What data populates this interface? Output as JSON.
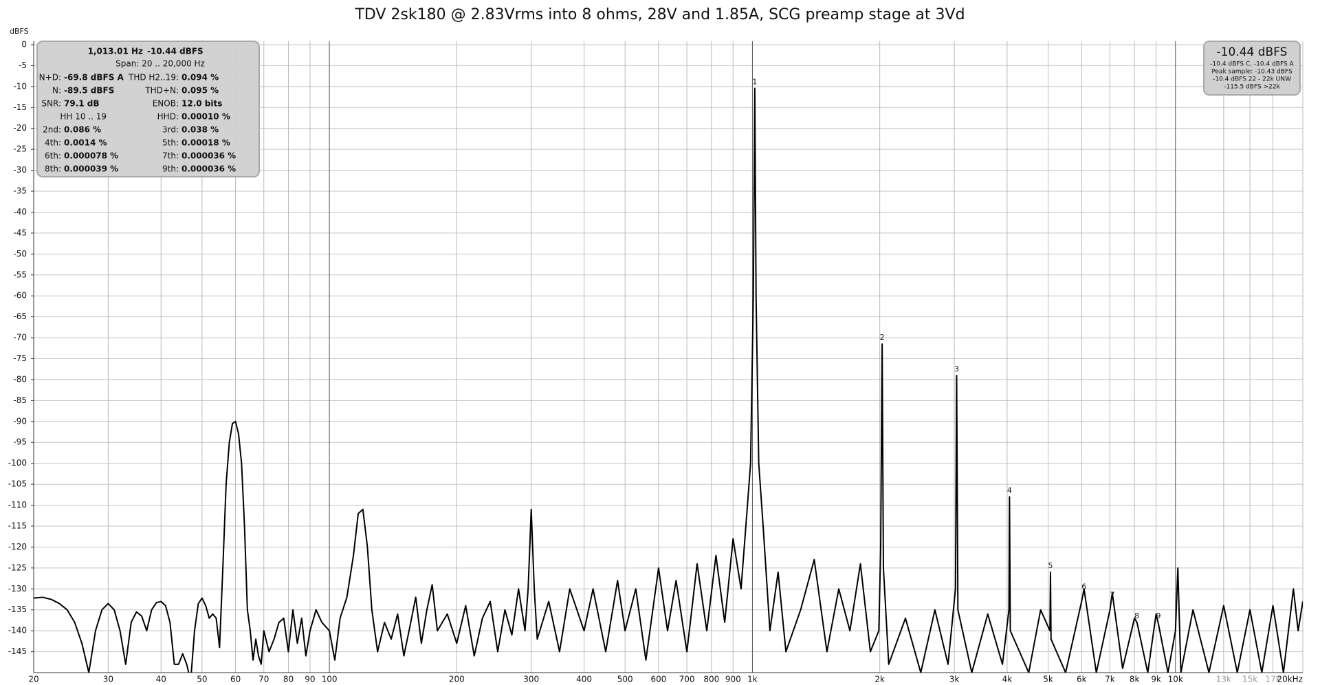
{
  "chart_data": {
    "type": "line",
    "title": "TDV 2sk180 @ 2.83Vrms into 8 ohms, 28V and 1.85A, SCG preamp stage at 3Vd",
    "y_label": "dBFS",
    "x_scale": "log",
    "grid": true,
    "xlim": [
      20,
      20000
    ],
    "ylim": [
      -150,
      0
    ],
    "yticks": [
      0,
      -5,
      -10,
      -15,
      -20,
      -25,
      -30,
      -35,
      -40,
      -45,
      -50,
      -55,
      -60,
      -65,
      -70,
      -75,
      -80,
      -85,
      -90,
      -95,
      -100,
      -105,
      -110,
      -115,
      -120,
      -125,
      -130,
      -135,
      -140,
      -145
    ],
    "xticks": [
      20,
      30,
      40,
      50,
      60,
      70,
      80,
      90,
      100,
      200,
      300,
      400,
      500,
      600,
      700,
      800,
      900,
      {
        "value": 1000,
        "label": "1k"
      },
      {
        "value": 2000,
        "label": "2k"
      },
      {
        "value": 3000,
        "label": "3k"
      },
      {
        "value": 4000,
        "label": "4k"
      },
      {
        "value": 5000,
        "label": "5k"
      },
      {
        "value": 6000,
        "label": "6k"
      },
      {
        "value": 7000,
        "label": "7k"
      },
      {
        "value": 8000,
        "label": "8k"
      },
      {
        "value": 9000,
        "label": "9k"
      },
      {
        "value": 10000,
        "label": "10k"
      },
      {
        "value": 13000,
        "label": "13k"
      },
      {
        "value": 15000,
        "label": "15k"
      },
      {
        "value": 17000,
        "label": "17k"
      },
      {
        "value": 20000,
        "label": "20kHz"
      }
    ],
    "x": [
      20,
      21,
      22,
      23,
      24,
      25,
      26,
      27,
      28,
      29,
      30,
      31,
      32,
      33,
      34,
      35,
      36,
      37,
      38,
      39,
      40,
      41,
      42,
      43,
      44,
      45,
      46,
      47,
      48,
      49,
      50,
      51,
      52,
      53,
      54,
      55,
      56,
      57,
      58,
      59,
      60,
      61,
      62,
      63,
      64,
      65,
      66,
      67,
      68,
      69,
      70,
      72,
      74,
      76,
      78,
      80,
      82,
      84,
      86,
      88,
      90,
      93,
      96,
      100,
      103,
      106,
      110,
      114,
      117,
      120,
      123,
      126,
      130,
      135,
      140,
      145,
      150,
      155,
      160,
      165,
      170,
      175,
      180,
      190,
      200,
      210,
      220,
      230,
      240,
      250,
      260,
      270,
      280,
      290,
      295,
      300,
      305,
      310,
      330,
      350,
      370,
      400,
      420,
      450,
      480,
      500,
      530,
      560,
      600,
      630,
      660,
      700,
      740,
      780,
      820,
      860,
      900,
      940,
      970,
      990,
      1005,
      1013,
      1020,
      1035,
      1060,
      1100,
      1150,
      1200,
      1300,
      1400,
      1500,
      1600,
      1700,
      1800,
      1900,
      1990,
      2010,
      2026,
      2040,
      2100,
      2300,
      2500,
      2700,
      2900,
      3020,
      3039,
      3060,
      3300,
      3600,
      3900,
      4040,
      4052,
      4070,
      4500,
      4800,
      5050,
      5065,
      5080,
      5500,
      6000,
      6080,
      6500,
      7000,
      7090,
      7500,
      8000,
      8110,
      8600,
      9000,
      9120,
      9600,
      10000,
      10130,
      10300,
      11000,
      12000,
      13000,
      14000,
      15000,
      16000,
      17000,
      18000,
      19000,
      19500,
      20000
    ],
    "series": [
      {
        "name": "Spectrum",
        "color": "#000000",
        "values": [
          -132.2,
          -132,
          -132.5,
          -133.5,
          -135,
          -138,
          -143,
          -150,
          -140,
          -135,
          -133.5,
          -135,
          -140,
          -148,
          -138,
          -135.5,
          -136.5,
          -140,
          -135,
          -133.3,
          -133,
          -134,
          -138,
          -148,
          -148,
          -145.5,
          -148,
          -152,
          -140,
          -133.5,
          -132.2,
          -134,
          -137,
          -136,
          -137,
          -144,
          -125,
          -105,
          -95,
          -90.5,
          -90,
          -93,
          -100,
          -115,
          -135,
          -140,
          -147,
          -142,
          -146,
          -148,
          -140,
          -145,
          -142,
          -138,
          -137,
          -145,
          -135,
          -143,
          -137,
          -146,
          -140,
          -135,
          -138,
          -140,
          -147,
          -137,
          -132,
          -122,
          -112,
          -111,
          -120,
          -135,
          -145,
          -138,
          -142,
          -136,
          -146,
          -139,
          -132,
          -143,
          -135,
          -129,
          -140,
          -136,
          -143,
          -134,
          -146,
          -137,
          -133,
          -145,
          -135,
          -141,
          -130,
          -140,
          -130,
          -111,
          -130,
          -142,
          -133,
          -145,
          -130,
          -140,
          -130,
          -145,
          -128,
          -140,
          -130,
          -147,
          -125,
          -140,
          -128,
          -145,
          -124,
          -140,
          -122,
          -138,
          -118,
          -130,
          -112,
          -100,
          -60,
          -10.44,
          -60,
          -100,
          -115,
          -140,
          -126,
          -145,
          -135,
          -123,
          -145,
          -130,
          -140,
          -124,
          -145,
          -140,
          -120,
          -71.5,
          -125,
          -148,
          -137,
          -150,
          -135,
          -148,
          -130,
          -79,
          -135,
          -150,
          -136,
          -148,
          -135,
          -108,
          -140,
          -150,
          -135,
          -140,
          -126,
          -142,
          -150,
          -133,
          -130,
          -150,
          -135,
          -131,
          -149,
          -137,
          -138,
          -150,
          -136,
          -138.5,
          -150,
          -140,
          -125,
          -150,
          -135,
          -150,
          -134,
          -150,
          -135,
          -150,
          -134,
          -150,
          -130,
          -140,
          -133
        ]
      }
    ],
    "harmonics": [
      {
        "label": "1",
        "x": 1013,
        "value": -10.44
      },
      {
        "label": "2",
        "x": 2026,
        "value": -71.5
      },
      {
        "label": "3",
        "x": 3039,
        "value": -79
      },
      {
        "label": "4",
        "x": 4052,
        "value": -108
      },
      {
        "label": "5",
        "x": 5065,
        "value": -126
      },
      {
        "label": "6",
        "x": 6078,
        "value": -131
      },
      {
        "label": "7",
        "x": 7091,
        "value": -133
      },
      {
        "label": "8",
        "x": 8104,
        "value": -138
      },
      {
        "label": "9",
        "x": 9117,
        "value": -138
      }
    ],
    "info_box": {
      "header": [
        "1,013.01 Hz",
        "-10.44 dBFS"
      ],
      "span": "Span: 20 .. 20,000 Hz",
      "rows": [
        {
          "left": [
            "N+D:",
            "-69.8 dBFS A"
          ],
          "right": [
            "THD H2..19:",
            "0.094 %"
          ]
        },
        {
          "left": [
            "N:",
            "-89.5 dBFS"
          ],
          "right": [
            "THD+N:",
            "0.095 %"
          ]
        },
        {
          "left": [
            "SNR:",
            "79.1 dB"
          ],
          "right": [
            "ENOB:",
            "12.0 bits"
          ]
        },
        {
          "left": [
            "HH 10 .. 19"
          ],
          "right": [
            "HHD:",
            "0.00010 %"
          ]
        },
        {
          "left": [
            "2nd:",
            "0.086 %"
          ],
          "right": [
            "3rd:",
            "0.038 %"
          ]
        },
        {
          "left": [
            "4th:",
            "0.0014 %"
          ],
          "right": [
            "5th:",
            "0.00018 %"
          ]
        },
        {
          "left": [
            "6th:",
            "0.000078 %"
          ],
          "right": [
            "7th:",
            "0.000036 %"
          ]
        },
        {
          "left": [
            "8th:",
            "0.000039 %"
          ],
          "right": [
            "9th:",
            "0.000036 %"
          ]
        }
      ]
    },
    "level_box": {
      "main": "-10.44 dBFS",
      "lines": [
        "-10.4 dBFS C, -10.4 dBFS A",
        "Peak sample: -10.43 dBFS",
        "-10.4 dBFS 22 - 22k UNW",
        "-115.5 dBFS >22k"
      ]
    }
  }
}
